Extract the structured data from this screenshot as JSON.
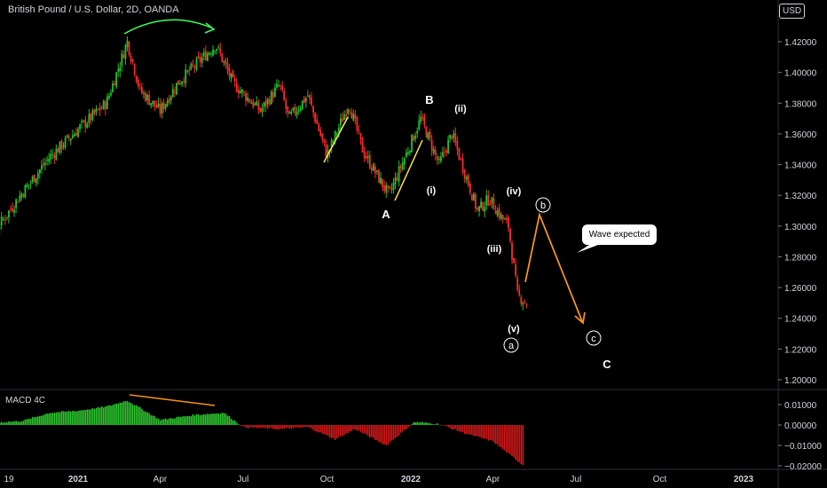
{
  "title": "British Pound / U.S. Dollar, 2D, OANDA",
  "currency": "USD",
  "indicator_name": "MACD 4C",
  "annotation": "Wave expected",
  "colors": {
    "up": "#26a69a",
    "green": "#22c12a",
    "red": "#ff2a2a",
    "macd_pos": "#2ec72e",
    "macd_neg": "#d01818",
    "orange": "#f7931a",
    "yellow": "#ffe84a",
    "bright_green": "#3cff5a",
    "bg": "#000000",
    "text": "#d1d4dc"
  },
  "chart_data": [
    {
      "type": "candlestick",
      "title": "British Pound / U.S. Dollar, 2D, OANDA",
      "yticks": [
        "1.42000",
        "1.40000",
        "1.38000",
        "1.36000",
        "1.34000",
        "1.32000",
        "1.30000",
        "1.28000",
        "1.26000",
        "1.24000",
        "1.22000",
        "1.20000"
      ],
      "ylim": [
        1.195,
        1.445
      ],
      "xticks": [
        "19",
        "2021",
        "Apr",
        "Jul",
        "Oct",
        "2022",
        "Apr",
        "Jul",
        "Oct",
        "2023"
      ],
      "close_path": [
        [
          "2020-09-01",
          1.292
        ],
        [
          "2020-10-01",
          1.296
        ],
        [
          "2020-11-01",
          1.322
        ],
        [
          "2020-12-01",
          1.345
        ],
        [
          "2021-01-01",
          1.363
        ],
        [
          "2021-02-01",
          1.38
        ],
        [
          "2021-02-24",
          1.42
        ],
        [
          "2021-03-10",
          1.388
        ],
        [
          "2021-04-01",
          1.375
        ],
        [
          "2021-04-20",
          1.393
        ],
        [
          "2021-05-10",
          1.405
        ],
        [
          "2021-06-01",
          1.418
        ],
        [
          "2021-06-20",
          1.393
        ],
        [
          "2021-07-20",
          1.375
        ],
        [
          "2021-08-10",
          1.392
        ],
        [
          "2021-08-20",
          1.37
        ],
        [
          "2021-09-10",
          1.385
        ],
        [
          "2021-10-01",
          1.346
        ],
        [
          "2021-10-25",
          1.38
        ],
        [
          "2021-11-10",
          1.348
        ],
        [
          "2021-12-08",
          1.32
        ],
        [
          "2022-01-12",
          1.37
        ],
        [
          "2022-02-01",
          1.34
        ],
        [
          "2022-02-15",
          1.36
        ],
        [
          "2022-03-15",
          1.31
        ],
        [
          "2022-03-28",
          1.318
        ],
        [
          "2022-04-10",
          1.306
        ],
        [
          "2022-04-18",
          1.3
        ],
        [
          "2022-04-28",
          1.255
        ],
        [
          "2022-05-08",
          1.25
        ]
      ],
      "labels": [
        "B",
        "A",
        "(i)",
        "(ii)",
        "(iii)",
        "(iv)",
        "(v)",
        "a",
        "b",
        "c",
        "C"
      ]
    },
    {
      "type": "bar",
      "title": "MACD 4C",
      "yticks": [
        "0.01000",
        "0.00000",
        "−0.01000",
        "−0.02000"
      ],
      "ylim": [
        -0.0215,
        0.0125
      ],
      "histogram_path": [
        [
          "2020-09-01",
          0.0015
        ],
        [
          "2020-10-01",
          0.0012
        ],
        [
          "2020-11-01",
          0.002
        ],
        [
          "2020-12-01",
          0.006
        ],
        [
          "2021-01-01",
          0.007
        ],
        [
          "2021-02-01",
          0.009
        ],
        [
          "2021-02-24",
          0.012
        ],
        [
          "2021-04-01",
          0.0025
        ],
        [
          "2021-05-10",
          0.005
        ],
        [
          "2021-06-10",
          0.006
        ],
        [
          "2021-07-01",
          -0.001
        ],
        [
          "2021-08-10",
          -0.002
        ],
        [
          "2021-09-10",
          -0.001
        ],
        [
          "2021-10-10",
          -0.007
        ],
        [
          "2021-11-01",
          -0.002
        ],
        [
          "2021-12-05",
          -0.01
        ],
        [
          "2022-01-05",
          0.0015
        ],
        [
          "2022-02-01",
          0.0005
        ],
        [
          "2022-03-01",
          -0.004
        ],
        [
          "2022-04-01",
          -0.008
        ],
        [
          "2022-05-05",
          -0.02
        ]
      ]
    }
  ]
}
